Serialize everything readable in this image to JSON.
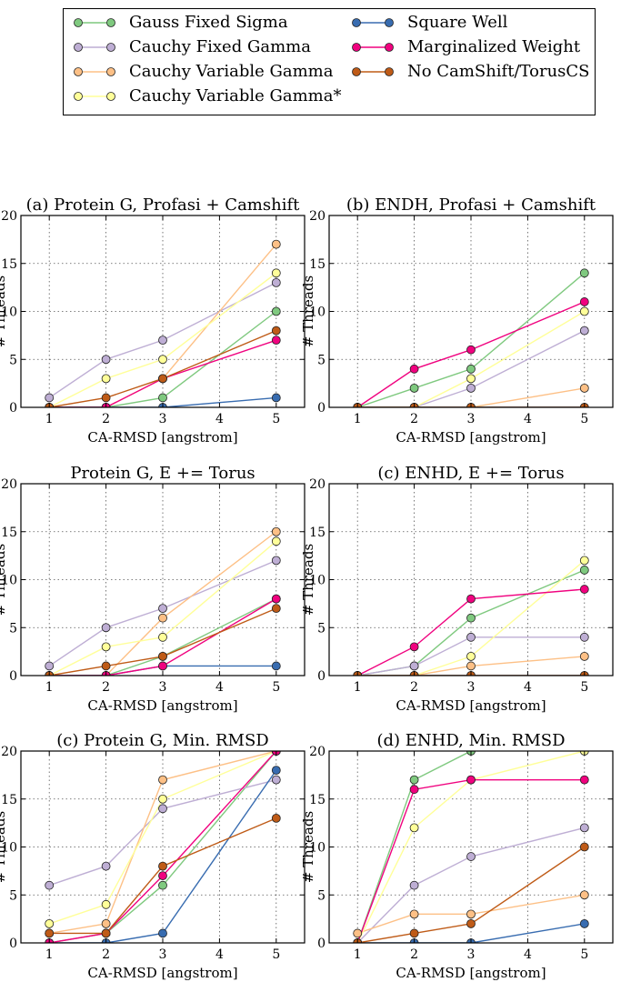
{
  "chart_data": {
    "legend": {
      "placement": "top",
      "entries": [
        {
          "key": "gauss",
          "label": "Gauss Fixed Sigma",
          "color": "#7fc97f"
        },
        {
          "key": "cauchy_fixed",
          "label": "Cauchy Fixed Gamma",
          "color": "#beaed4"
        },
        {
          "key": "cauchy_var",
          "label": "Cauchy Variable Gamma",
          "color": "#fdc086"
        },
        {
          "key": "cauchy_var_star",
          "label": "Cauchy Variable Gamma*",
          "color": "#ffff99"
        },
        {
          "key": "square",
          "label": "Square Well",
          "color": "#386cb0"
        },
        {
          "key": "marg",
          "label": "Marginalized Weight",
          "color": "#f0027f"
        },
        {
          "key": "nocs",
          "label": "No CamShift/TorusCS",
          "color": "#bf5b17"
        }
      ]
    },
    "charts": [
      {
        "type": "line",
        "title": "(a) Protein G, Profasi + Camshift",
        "xlabel": "CA-RMSD [angstrom]",
        "ylabel": "# Threads",
        "xlim": [
          0.5,
          5.5
        ],
        "ylim": [
          0,
          20
        ],
        "xticks": [
          1,
          2,
          3,
          4,
          5
        ],
        "yticks": [
          0,
          5,
          10,
          15,
          20
        ],
        "grid": true,
        "x": [
          1,
          2,
          3,
          5
        ],
        "series": [
          {
            "key": "gauss",
            "values": [
              0,
              0,
              1,
              10
            ]
          },
          {
            "key": "cauchy_fixed",
            "values": [
              1,
              5,
              7,
              13
            ]
          },
          {
            "key": "cauchy_var",
            "values": [
              0,
              0,
              3,
              17
            ]
          },
          {
            "key": "cauchy_var_star",
            "values": [
              0,
              3,
              5,
              14
            ]
          },
          {
            "key": "square",
            "values": [
              0,
              0,
              0,
              1
            ]
          },
          {
            "key": "marg",
            "values": [
              0,
              0,
              3,
              7
            ]
          },
          {
            "key": "nocs",
            "values": [
              0,
              1,
              3,
              8
            ]
          }
        ]
      },
      {
        "type": "line",
        "title": "(b) ENDH, Profasi + Camshift",
        "xlabel": "CA-RMSD [angstrom]",
        "ylabel": "# Threads",
        "xlim": [
          0.5,
          5.5
        ],
        "ylim": [
          0,
          20
        ],
        "xticks": [
          1,
          2,
          3,
          4,
          5
        ],
        "yticks": [
          0,
          5,
          10,
          15,
          20
        ],
        "grid": true,
        "x": [
          1,
          2,
          3,
          5
        ],
        "series": [
          {
            "key": "gauss",
            "values": [
              0,
              2,
              4,
              14
            ]
          },
          {
            "key": "cauchy_fixed",
            "values": [
              0,
              0,
              2,
              8
            ]
          },
          {
            "key": "cauchy_var",
            "values": [
              0,
              0,
              0,
              2
            ]
          },
          {
            "key": "cauchy_var_star",
            "values": [
              0,
              0,
              3,
              10
            ]
          },
          {
            "key": "square",
            "values": [
              0,
              0,
              0,
              0
            ]
          },
          {
            "key": "marg",
            "values": [
              0,
              4,
              6,
              11
            ]
          },
          {
            "key": "nocs",
            "values": [
              0,
              0,
              0,
              0
            ]
          }
        ]
      },
      {
        "type": "line",
        "title": "Protein G, E += Torus",
        "xlabel": "CA-RMSD [angstrom]",
        "ylabel": "# Threads",
        "xlim": [
          0.5,
          5.5
        ],
        "ylim": [
          0,
          20
        ],
        "xticks": [
          1,
          2,
          3,
          4,
          5
        ],
        "yticks": [
          0,
          5,
          10,
          15,
          20
        ],
        "grid": true,
        "x": [
          1,
          2,
          3,
          5
        ],
        "series": [
          {
            "key": "gauss",
            "values": [
              0,
              0,
              2,
              8
            ]
          },
          {
            "key": "cauchy_fixed",
            "values": [
              1,
              5,
              7,
              12
            ]
          },
          {
            "key": "cauchy_var",
            "values": [
              0,
              0,
              6,
              15
            ]
          },
          {
            "key": "cauchy_var_star",
            "values": [
              0,
              3,
              4,
              14
            ]
          },
          {
            "key": "square",
            "values": [
              0,
              0,
              1,
              1
            ]
          },
          {
            "key": "marg",
            "values": [
              0,
              0,
              1,
              8
            ]
          },
          {
            "key": "nocs",
            "values": [
              0,
              1,
              2,
              7
            ]
          }
        ]
      },
      {
        "type": "line",
        "title": "(c) ENHD, E += Torus",
        "xlabel": "CA-RMSD [angstrom]",
        "ylabel": "# Threads",
        "xlim": [
          0.5,
          5.5
        ],
        "ylim": [
          0,
          20
        ],
        "xticks": [
          1,
          2,
          3,
          4,
          5
        ],
        "yticks": [
          0,
          5,
          10,
          15,
          20
        ],
        "grid": true,
        "x": [
          1,
          2,
          3,
          5
        ],
        "series": [
          {
            "key": "gauss",
            "values": [
              0,
              1,
              6,
              11
            ]
          },
          {
            "key": "cauchy_fixed",
            "values": [
              0,
              1,
              4,
              4
            ]
          },
          {
            "key": "cauchy_var",
            "values": [
              0,
              0,
              1,
              2
            ]
          },
          {
            "key": "cauchy_var_star",
            "values": [
              0,
              0,
              2,
              12
            ]
          },
          {
            "key": "square",
            "values": [
              0,
              0,
              0,
              0
            ]
          },
          {
            "key": "marg",
            "values": [
              0,
              3,
              8,
              9
            ]
          },
          {
            "key": "nocs",
            "values": [
              0,
              0,
              0,
              0
            ]
          }
        ]
      },
      {
        "type": "line",
        "title": "(c) Protein G, Min. RMSD",
        "xlabel": "CA-RMSD [angstrom]",
        "ylabel": "# Threads",
        "xlim": [
          0.5,
          5.5
        ],
        "ylim": [
          0,
          20
        ],
        "xticks": [
          1,
          2,
          3,
          4,
          5
        ],
        "yticks": [
          0,
          5,
          10,
          15,
          20
        ],
        "grid": true,
        "x": [
          1,
          2,
          3,
          5
        ],
        "series": [
          {
            "key": "gauss",
            "values": [
              0,
              1,
              6,
              20
            ]
          },
          {
            "key": "cauchy_fixed",
            "values": [
              6,
              8,
              14,
              17
            ]
          },
          {
            "key": "cauchy_var",
            "values": [
              1,
              2,
              17,
              20
            ]
          },
          {
            "key": "cauchy_var_star",
            "values": [
              2,
              4,
              15,
              20
            ]
          },
          {
            "key": "square",
            "values": [
              0,
              0,
              1,
              18
            ]
          },
          {
            "key": "marg",
            "values": [
              0,
              1,
              7,
              20
            ]
          },
          {
            "key": "nocs",
            "values": [
              1,
              1,
              8,
              13
            ]
          }
        ]
      },
      {
        "type": "line",
        "title": "(d) ENHD, Min. RMSD",
        "xlabel": "CA-RMSD [angstrom]",
        "ylabel": "# Threads",
        "xlim": [
          0.5,
          5.5
        ],
        "ylim": [
          0,
          20
        ],
        "xticks": [
          1,
          2,
          3,
          4,
          5
        ],
        "yticks": [
          0,
          5,
          10,
          15,
          20
        ],
        "grid": true,
        "x": [
          1,
          2,
          3,
          5
        ],
        "series": [
          {
            "key": "gauss",
            "values": [
              0,
              17,
              20,
              22
            ]
          },
          {
            "key": "cauchy_fixed",
            "values": [
              0,
              6,
              9,
              12
            ]
          },
          {
            "key": "cauchy_var",
            "values": [
              1,
              3,
              3,
              5
            ]
          },
          {
            "key": "cauchy_var_star",
            "values": [
              0,
              12,
              17,
              20
            ]
          },
          {
            "key": "square",
            "values": [
              0,
              0,
              0,
              2
            ]
          },
          {
            "key": "marg",
            "values": [
              0,
              16,
              17,
              17
            ]
          },
          {
            "key": "nocs",
            "values": [
              0,
              1,
              2,
              10
            ]
          }
        ]
      }
    ]
  }
}
